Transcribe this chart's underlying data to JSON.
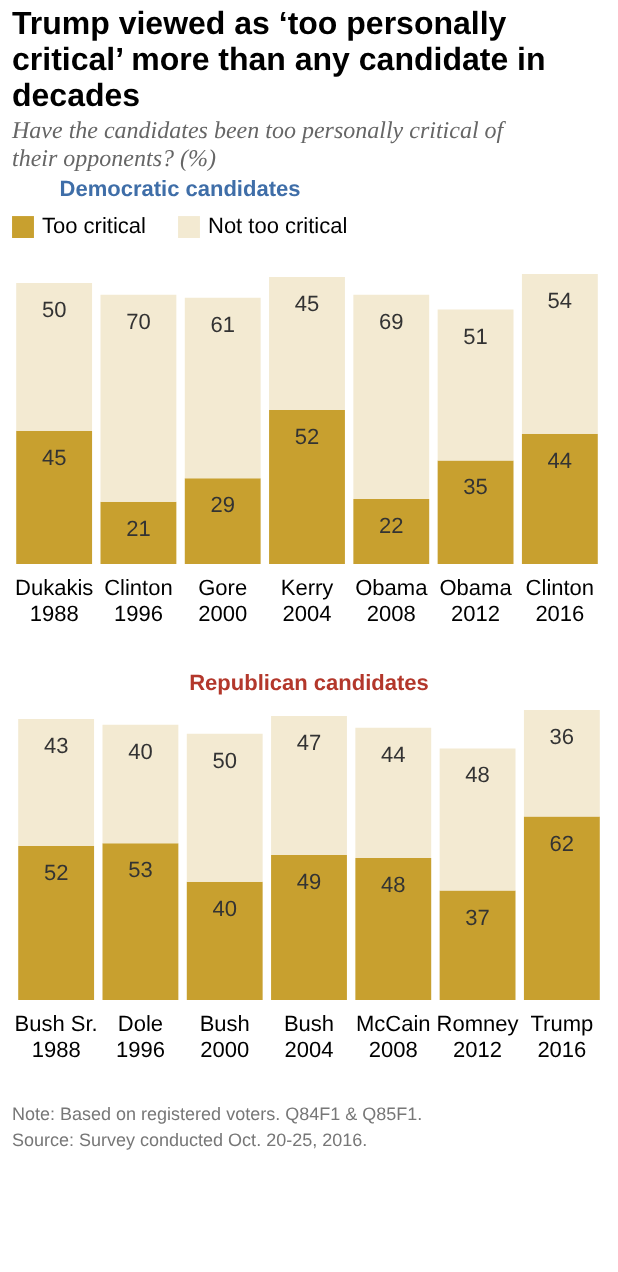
{
  "chart_data": [
    {
      "type": "bar",
      "title": "Trump viewed as ‘too personally critical’ more than any candidate in decades",
      "subtitle": "Have the candidates been too personally critical of their opponents? (%)",
      "legend_title": "Democratic candidates",
      "legend": "top",
      "stacked": true,
      "data_labels": true,
      "categories": [
        "Dukakis\n1988",
        "Clinton\n1996",
        "Gore\n2000",
        "Kerry\n2004",
        "Obama\n2008",
        "Obama\n2012",
        "Clinton\n2016"
      ],
      "series": [
        {
          "name": "Too critical",
          "color": "#c8a02f",
          "values": [
            45,
            21,
            29,
            52,
            22,
            35,
            44
          ]
        },
        {
          "name": "Not too critical",
          "color": "#f3ead2",
          "values": [
            50,
            70,
            61,
            45,
            69,
            51,
            54
          ]
        }
      ]
    },
    {
      "type": "bar",
      "title": "Republican candidates",
      "stacked": true,
      "data_labels": true,
      "categories": [
        "Bush Sr.\n1988",
        "Dole\n1996",
        "Bush\n2000",
        "Bush\n2004",
        "McCain\n2008",
        "Romney\n2012",
        "Trump\n2016"
      ],
      "series": [
        {
          "color": "#c8a02f",
          "values": [
            52,
            53,
            40,
            49,
            48,
            37,
            62
          ]
        },
        {
          "color": "#f3ead2",
          "values": [
            43,
            40,
            50,
            47,
            44,
            48,
            36
          ]
        }
      ],
      "annotations": [
        "Note: Based on registered voters. Q84F1 & Q85F1.",
        "Source: Survey conducted Oct. 20-25, 2016."
      ]
    }
  ]
}
